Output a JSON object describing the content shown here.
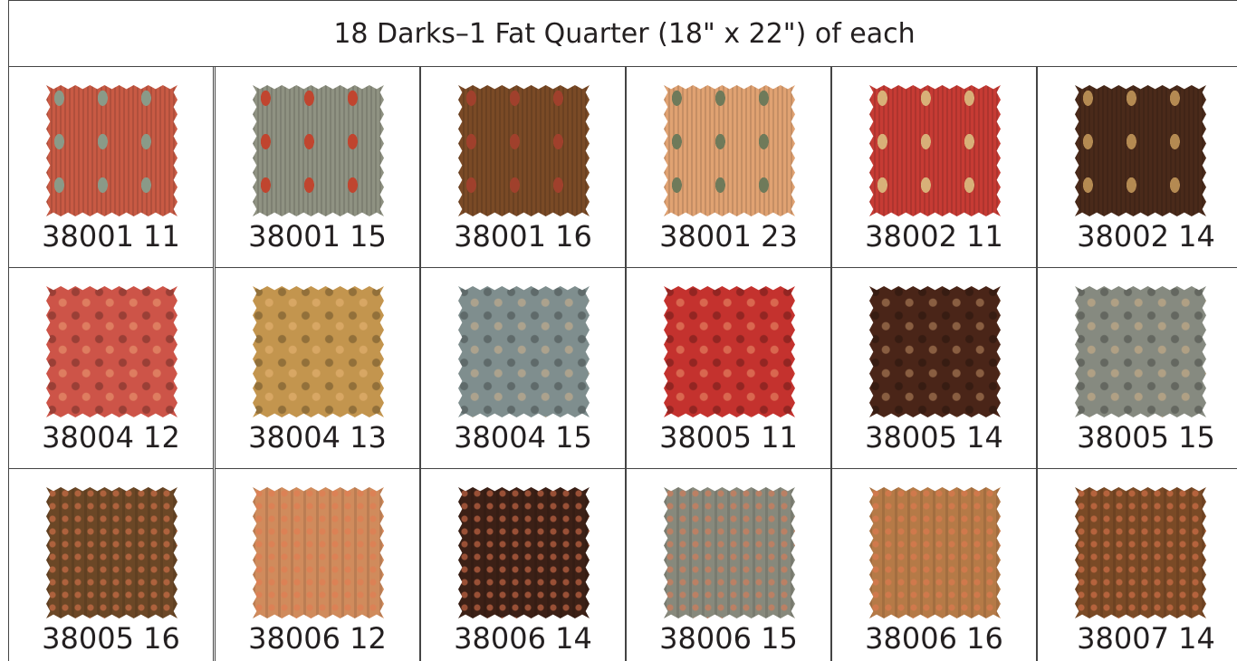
{
  "header": {
    "title": "18 Darks–1 Fat Quarter (18\" x 22\") of each"
  },
  "table": {
    "rows": [
      [
        "38001 11",
        "38001 15",
        "38001 16",
        "38001 23",
        "38002 11",
        "38002 14"
      ],
      [
        "38004 12",
        "38004 13",
        "38004 15",
        "38005 11",
        "38005 14",
        "38005 15"
      ],
      [
        "38005 16",
        "38006 12",
        "38006 14",
        "38006 15",
        "38006 16",
        "38007 14"
      ]
    ]
  }
}
